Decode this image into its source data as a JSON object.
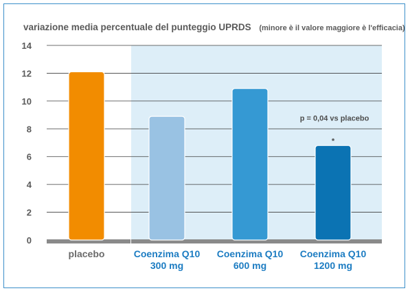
{
  "chart_data": {
    "type": "bar",
    "title": "variazione media percentuale del punteggio UPRDS",
    "subtitle": "(minore è il valore maggiore è l'efficacia)",
    "ylim": [
      0,
      14
    ],
    "yticks": [
      "0",
      "2",
      "4",
      "6",
      "8",
      "10",
      "12",
      "14"
    ],
    "grid": true,
    "categories": [
      {
        "line1": "placebo",
        "line2": ""
      },
      {
        "line1": "Coenzima Q10",
        "line2": "300 mg"
      },
      {
        "line1": "Coenzima Q10",
        "line2": "600 mg"
      },
      {
        "line1": "Coenzima Q10",
        "line2": "1200 mg"
      }
    ],
    "values": [
      12.1,
      8.9,
      10.9,
      6.8
    ],
    "bar_colors": [
      "#f28c00",
      "#99c2e3",
      "#3599d3",
      "#0b73b3"
    ],
    "label_colors": [
      "#6a6a6a",
      "#1c7cc2",
      "#1c7cc2",
      "#1c7cc2"
    ],
    "highlight_background": "#ddeef8",
    "annotation": {
      "text": "p = 0,04 vs placebo",
      "marker": "*",
      "category_index": 3
    }
  }
}
